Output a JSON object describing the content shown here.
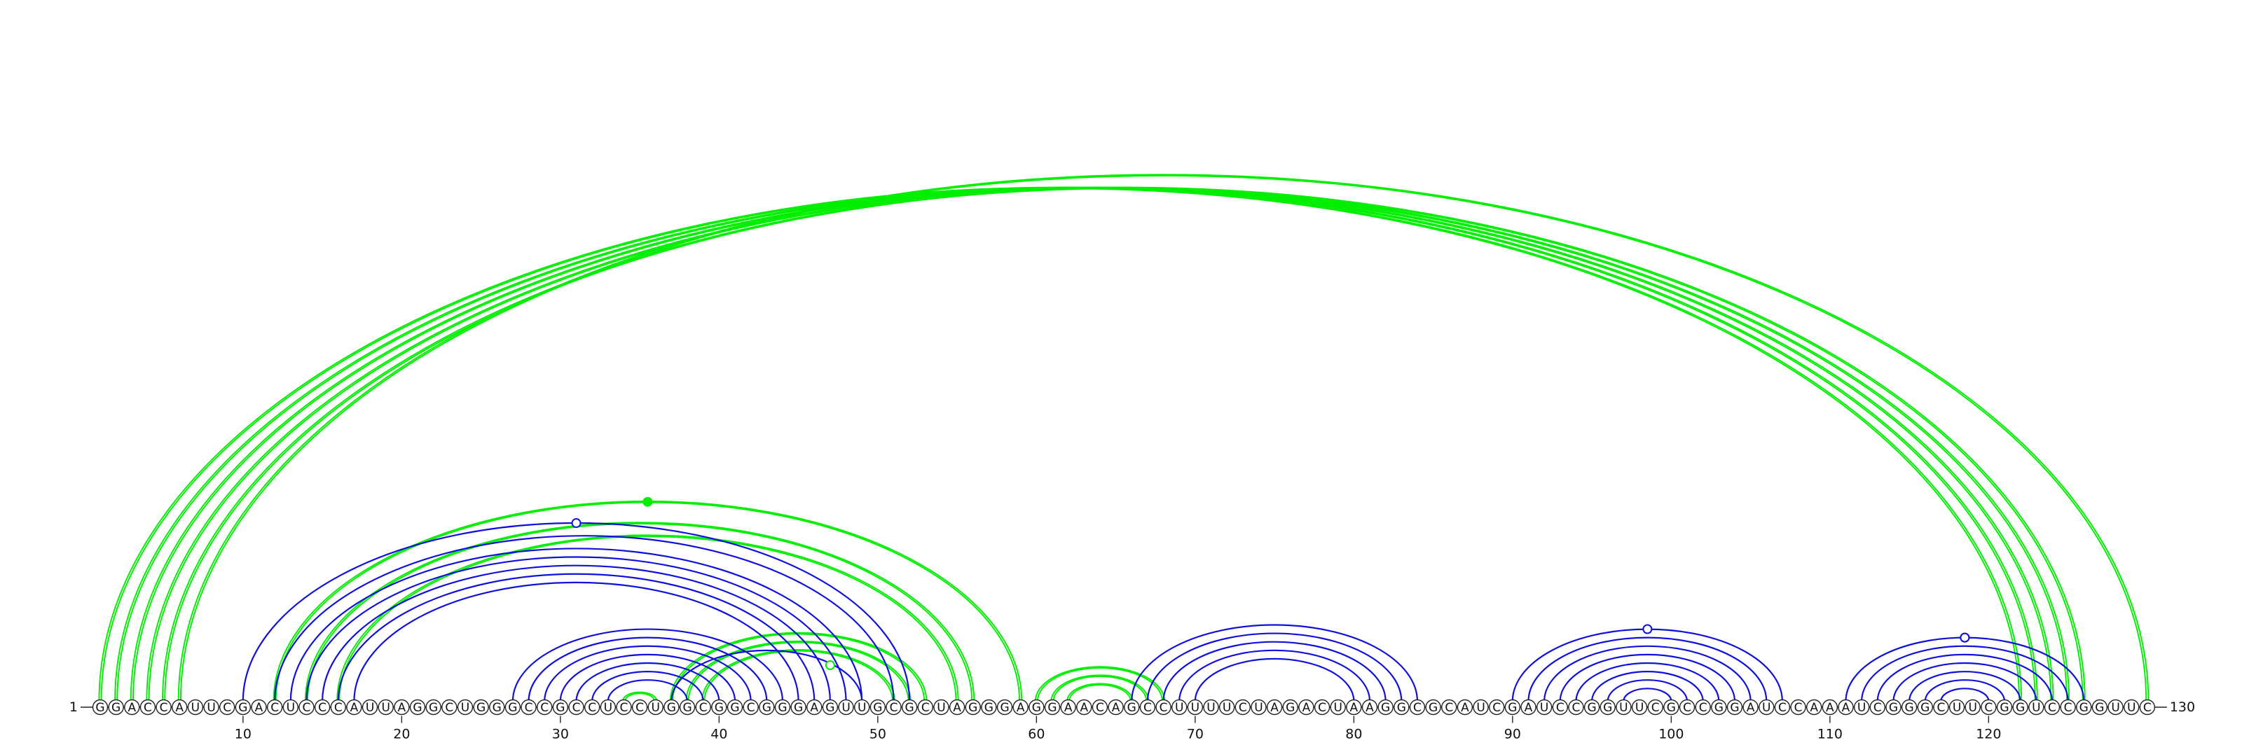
{
  "sequence": "GGACCAUUCGACUCCCAUUAGGCUGGGCCGCCUCCUGGCGGCGGGAGUUGCGCUAGGGAGGAACAGCCUUUUCUAGACUAAGGCGCAUCGAUCCGGUUCGCCGGAUCCAAAUCGGGCUUCGGUCCGGUUC",
  "start_label": "1",
  "end_label": "130",
  "ticks": [
    10,
    20,
    30,
    40,
    50,
    60,
    70,
    80,
    90,
    100,
    110,
    120
  ],
  "colors": {
    "blue": "#1010dd",
    "green": "#00ee00",
    "backbone": "#222222"
  },
  "chart_data": {
    "type": "arc-diagram",
    "length": 130,
    "blue_pairs": [
      [
        10,
        52
      ],
      [
        12,
        51
      ],
      [
        13,
        49
      ],
      [
        14,
        48
      ],
      [
        15,
        47
      ],
      [
        16,
        46
      ],
      [
        17,
        45
      ],
      [
        27,
        44
      ],
      [
        28,
        43
      ],
      [
        29,
        42
      ],
      [
        30,
        41
      ],
      [
        31,
        40
      ],
      [
        32,
        39
      ],
      [
        33,
        38
      ],
      [
        37,
        49
      ],
      [
        66,
        84
      ],
      [
        67,
        83
      ],
      [
        68,
        82
      ],
      [
        69,
        81
      ],
      [
        70,
        80
      ],
      [
        90,
        107
      ],
      [
        91,
        106
      ],
      [
        92,
        105
      ],
      [
        93,
        104
      ],
      [
        94,
        103
      ],
      [
        95,
        102
      ],
      [
        96,
        101
      ],
      [
        97,
        100
      ],
      [
        111,
        126
      ],
      [
        112,
        125
      ],
      [
        113,
        124
      ],
      [
        114,
        123
      ],
      [
        115,
        122
      ],
      [
        116,
        121
      ],
      [
        117,
        120
      ]
    ],
    "green_pairs": [
      [
        1,
        122
      ],
      [
        2,
        123
      ],
      [
        3,
        124
      ],
      [
        4,
        125
      ],
      [
        5,
        126
      ],
      [
        6,
        130
      ],
      [
        12,
        59
      ],
      [
        14,
        56
      ],
      [
        16,
        55
      ],
      [
        34,
        36
      ],
      [
        37,
        53
      ],
      [
        38,
        52
      ],
      [
        39,
        51
      ],
      [
        60,
        68
      ],
      [
        61,
        67
      ],
      [
        62,
        66
      ]
    ],
    "blue_markers": [
      30,
      99,
      119,
      120
    ],
    "green_markers": [
      35,
      47
    ]
  }
}
